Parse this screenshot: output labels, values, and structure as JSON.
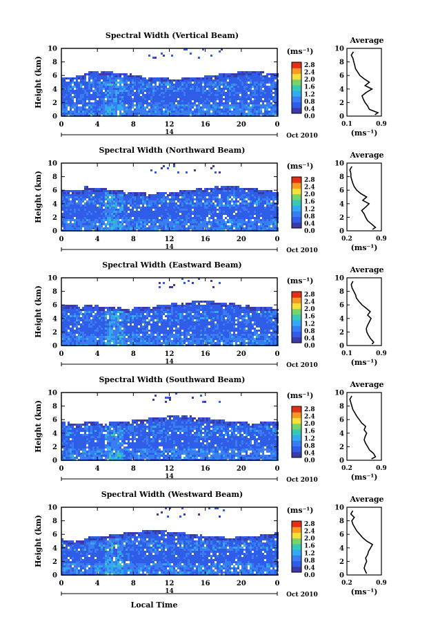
{
  "xlabel": "Local Time",
  "date_label": "Oct 2010",
  "day_label": "14",
  "ylabel": "Height (km)",
  "unit_label": "(ms⁻¹)",
  "profile_title": "Average",
  "colorbar_ticks": [
    "2.8",
    "2.4",
    "2.0",
    "1.6",
    "1.2",
    "0.8",
    "0.4",
    "0.0"
  ],
  "x_ticks": [
    "0",
    "4",
    "8",
    "12",
    "16",
    "20",
    "0"
  ],
  "y_ticks": [
    "0",
    "2",
    "4",
    "6",
    "8",
    "10"
  ],
  "colors": {
    "low": "#3a3aa8",
    "mid_low": "#2f5de8",
    "mid": "#33aaf0",
    "mid_high": "#39c8b4",
    "high": "#f7e03a",
    "max": "#e23016"
  },
  "chart_data": [
    {
      "type": "heatmap",
      "title": "Spectral Width (Vertical Beam)",
      "xlabel": "Local Time",
      "ylabel": "Height (km)",
      "xlim": [
        0,
        24
      ],
      "ylim": [
        0,
        10
      ],
      "colorbar_range": [
        0.0,
        2.8
      ],
      "profile": {
        "xticks": [
          "0.1",
          "0.9"
        ],
        "xlim": [
          0.1,
          0.9
        ],
        "heights": [
          0.2,
          0.5,
          1.0,
          1.5,
          2.0,
          2.5,
          3.0,
          3.5,
          4.0,
          4.5,
          5.0,
          5.5,
          6.0,
          6.5,
          7.0,
          7.5,
          8.0,
          8.5,
          9.0,
          9.5
        ],
        "values": [
          0.75,
          0.82,
          0.62,
          0.58,
          0.52,
          0.48,
          0.45,
          0.55,
          0.68,
          0.52,
          0.62,
          0.5,
          0.4,
          0.35,
          0.3,
          0.28,
          0.26,
          0.24,
          0.2,
          0.25
        ]
      }
    },
    {
      "type": "heatmap",
      "title": "Spectral Width (Northward Beam)",
      "xlabel": "Local Time",
      "ylabel": "Height (km)",
      "xlim": [
        0,
        24
      ],
      "ylim": [
        0,
        10
      ],
      "colorbar_range": [
        0.0,
        2.8
      ],
      "profile": {
        "xticks": [
          "0.2",
          "0.9"
        ],
        "xlim": [
          0.2,
          0.9
        ],
        "heights": [
          0.2,
          0.5,
          1.0,
          1.5,
          2.0,
          2.5,
          3.0,
          3.5,
          4.0,
          4.5,
          5.0,
          5.5,
          6.0,
          6.5,
          7.0,
          7.5,
          8.0,
          8.5,
          9.0,
          9.5
        ],
        "values": [
          0.72,
          0.78,
          0.7,
          0.62,
          0.58,
          0.55,
          0.5,
          0.58,
          0.65,
          0.52,
          0.6,
          0.48,
          0.4,
          0.35,
          0.32,
          0.3,
          0.28,
          0.28,
          0.26,
          0.3
        ]
      }
    },
    {
      "type": "heatmap",
      "title": "Spectral Width (Eastward Beam)",
      "xlabel": "Local Time",
      "ylabel": "Height (km)",
      "xlim": [
        0,
        24
      ],
      "ylim": [
        0,
        10
      ],
      "colorbar_range": [
        0.0,
        2.8
      ],
      "profile": {
        "xticks": [
          "0.1",
          "0.9"
        ],
        "xlim": [
          0.1,
          0.9
        ],
        "heights": [
          0.2,
          0.5,
          1.0,
          1.5,
          2.0,
          2.5,
          3.0,
          3.5,
          4.0,
          4.5,
          5.0,
          5.5,
          6.0,
          6.5,
          7.0,
          7.5,
          8.0,
          8.5,
          9.0,
          9.5
        ],
        "values": [
          0.68,
          0.72,
          0.65,
          0.6,
          0.56,
          0.55,
          0.58,
          0.62,
          0.66,
          0.58,
          0.64,
          0.55,
          0.45,
          0.38,
          0.32,
          0.3,
          0.26,
          0.22,
          0.2,
          0.24
        ]
      }
    },
    {
      "type": "heatmap",
      "title": "Spectral Width (Southward Beam)",
      "xlabel": "Local Time",
      "ylabel": "Height (km)",
      "xlim": [
        0,
        24
      ],
      "ylim": [
        0,
        10
      ],
      "colorbar_range": [
        0.0,
        2.8
      ],
      "profile": {
        "xticks": [
          "0.2",
          "0.9"
        ],
        "xlim": [
          0.2,
          0.9
        ],
        "heights": [
          0.2,
          0.5,
          1.0,
          1.5,
          2.0,
          2.5,
          3.0,
          3.5,
          4.0,
          4.5,
          5.0,
          5.5,
          6.0,
          6.5,
          7.0,
          7.5,
          8.0,
          8.5,
          9.0,
          9.5
        ],
        "values": [
          0.7,
          0.78,
          0.74,
          0.66,
          0.62,
          0.58,
          0.55,
          0.57,
          0.6,
          0.55,
          0.58,
          0.5,
          0.45,
          0.4,
          0.36,
          0.32,
          0.3,
          0.28,
          0.26,
          0.3
        ]
      }
    },
    {
      "type": "heatmap",
      "title": "Spectral Width (Westward Beam)",
      "xlabel": "Local Time",
      "ylabel": "Height (km)",
      "xlim": [
        0,
        24
      ],
      "ylim": [
        0,
        10
      ],
      "colorbar_range": [
        0.0,
        2.8
      ],
      "profile": {
        "xticks": [
          "0.2",
          "0.9"
        ],
        "xlim": [
          0.2,
          0.9
        ],
        "heights": [
          0.2,
          0.5,
          1.0,
          1.5,
          2.0,
          2.5,
          3.0,
          3.5,
          4.0,
          4.5,
          5.0,
          5.5,
          6.0,
          6.5,
          7.0,
          7.5,
          8.0,
          8.5,
          9.0,
          9.5
        ],
        "values": [
          0.6,
          0.58,
          0.55,
          0.57,
          0.6,
          0.58,
          0.62,
          0.64,
          0.68,
          0.72,
          0.6,
          0.52,
          0.46,
          0.4,
          0.36,
          0.32,
          0.3,
          0.35,
          0.28,
          0.32
        ]
      }
    }
  ]
}
